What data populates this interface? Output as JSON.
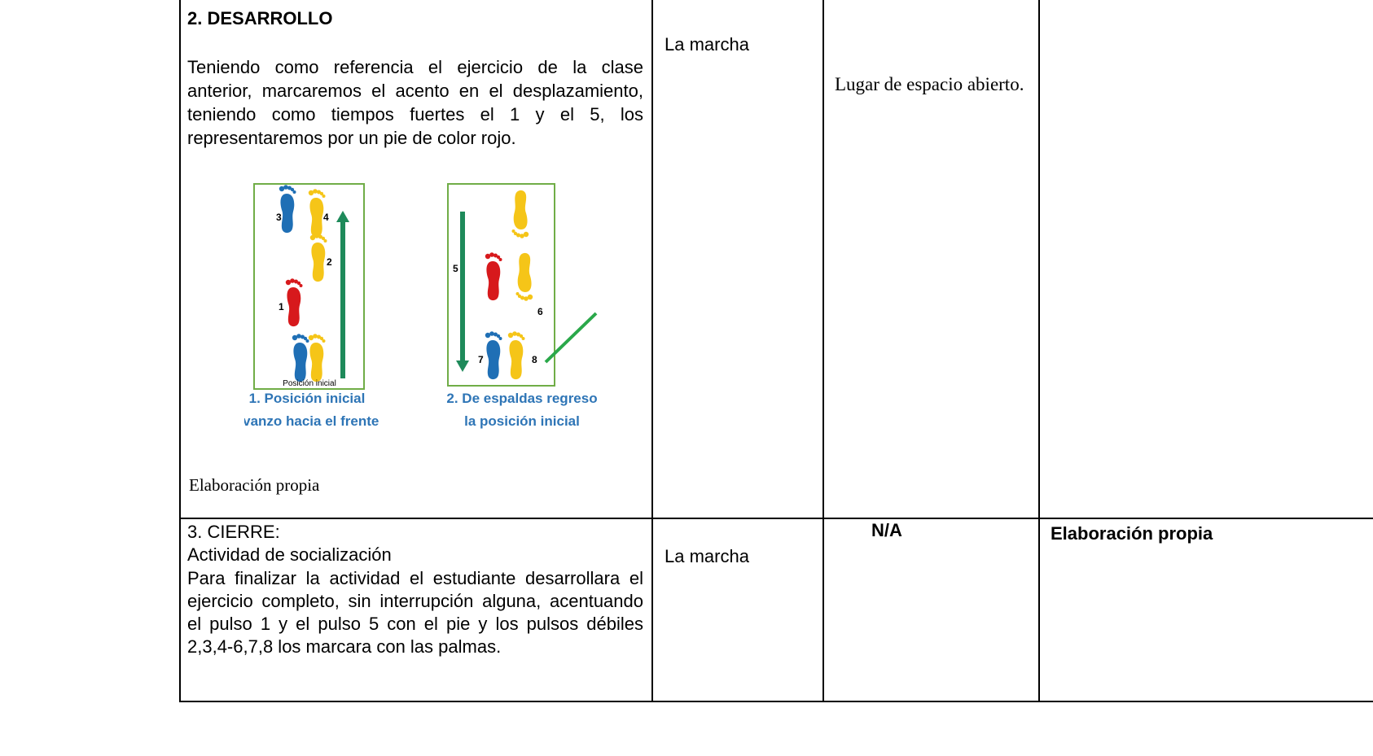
{
  "table": {
    "rows": [
      {
        "activity": {
          "heading": "2. DESARROLLO",
          "paragraph": "Teniendo como referencia el ejercicio de la clase anterior, marcaremos el acento en el desplazamiento, teniendo como tiempos fuertes el 1 y el 5, los representaremos por un pie de color rojo.",
          "figure": {
            "panels": [
              {
                "steps": [
                  "3",
                  "4",
                  "2",
                  "1"
                ],
                "floor_label": "Posición inicial",
                "caption_lines": [
                  "1. Posición inicial",
                  "avanzo hacia el frente"
                ]
              },
              {
                "steps": [
                  "5",
                  "6",
                  "7",
                  "8"
                ],
                "caption_lines": [
                  "2. De espaldas regreso",
                  "la posición inicial"
                ]
              }
            ]
          },
          "caption": "Elaboración propia"
        },
        "resource": "La marcha",
        "space": "Lugar de espacio abierto."
      },
      {
        "activity": {
          "heading": "3. CIERRE:",
          "subheading": "Actividad de socialización",
          "paragraph": "Para finalizar la actividad el estudiante desarrollara el ejercicio completo, sin interrupción alguna, acentuando el pulso 1 y el pulso 5 con el pie y los pulsos débiles 2,3,4-6,7,8 los marcara con las palmas."
        },
        "resource": "La marcha",
        "space": "N/A",
        "source": "Elaboración propia"
      }
    ]
  }
}
